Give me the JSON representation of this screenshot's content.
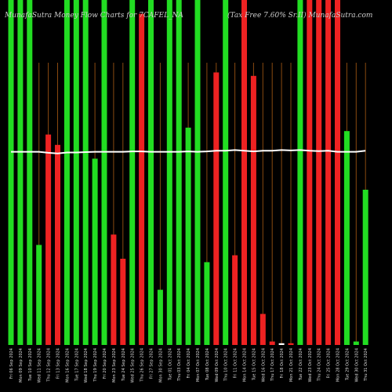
{
  "chart_data": {
    "type": "bar",
    "title": "MunafaSutra Money Flow Charts for 7CAFEL_NA",
    "subtitle": "(Tax Free 7.60% Sr.II) MunafaSutra.com",
    "categories": [
      "Fri 06 Sep 2024",
      "Mon 09 Sep 2024",
      "Tue 10 Sep 2024",
      "Wed 11 Sep 2024",
      "Thu 12 Sep 2024",
      "Fri 13 Sep 2024",
      "Mon 16 Sep 2024",
      "Tue 17 Sep 2024",
      "Wed 18 Sep 2024",
      "Thu 19 Sep 2024",
      "Fri 20 Sep 2024",
      "Mon 23 Sep 2024",
      "Tue 24 Sep 2024",
      "Wed 25 Sep 2024",
      "Thu 26 Sep 2024",
      "Fri 27 Sep 2024",
      "Mon 30 Sep 2024",
      "Tue 01 Oct 2024",
      "Thu 03 Oct 2024",
      "Fri 04 Oct 2024",
      "Mon 07 Oct 2024",
      "Tue 08 Oct 2024",
      "Wed 09 Oct 2024",
      "Thu 10 Oct 2024",
      "Fri 11 Oct 2024",
      "Mon 14 Oct 2024",
      "Tue 15 Oct 2024",
      "Wed 16 Oct 2024",
      "Thu 17 Oct 2024",
      "Fri 18 Oct 2024",
      "Mon 21 Oct 2024",
      "Tue 22 Oct 2024",
      "Wed 23 Oct 2024",
      "Thu 24 Oct 2024",
      "Fri 25 Oct 2024",
      "Mon 28 Oct 2024",
      "Tue 29 Oct 2024",
      "Wed 30 Oct 2024",
      "Thu 31 Oct 2024"
    ],
    "values": [
      100,
      100,
      100,
      29,
      61,
      58,
      100,
      100,
      100,
      54,
      100,
      32,
      25,
      100,
      96,
      100,
      16,
      100,
      100,
      63,
      100,
      24,
      79,
      100,
      26,
      100,
      78,
      9,
      1,
      0.5,
      0.5,
      100,
      100,
      100,
      100,
      100,
      62,
      1,
      45
    ],
    "colors": [
      "#22dd22",
      "#22dd22",
      "#22dd22",
      "#22dd22",
      "#ee2222",
      "#ee2222",
      "#22dd22",
      "#22dd22",
      "#22dd22",
      "#22dd22",
      "#22dd22",
      "#ee2222",
      "#ee2222",
      "#22dd22",
      "#ee2222",
      "#22dd22",
      "#22dd22",
      "#22dd22",
      "#22dd22",
      "#22dd22",
      "#22dd22",
      "#22dd22",
      "#ee2222",
      "#22dd22",
      "#ee2222",
      "#ee2222",
      "#ee2222",
      "#ee2222",
      "#ee2222",
      "#ffffff",
      "#ee2222",
      "#22dd22",
      "#ee2222",
      "#ee2222",
      "#ee2222",
      "#ee2222",
      "#22dd22",
      "#22dd22",
      "#22dd22"
    ],
    "line_values": [
      56,
      56,
      56,
      56,
      55.7,
      55.5,
      55.8,
      55.8,
      55.9,
      56,
      56,
      56,
      56,
      56.1,
      56.1,
      56,
      56,
      56,
      56,
      56.1,
      56,
      56.1,
      56.3,
      56.3,
      56.5,
      56.3,
      56.1,
      56.3,
      56.3,
      56.5,
      56.4,
      56.5,
      56.3,
      56.2,
      56.3,
      56,
      56,
      56,
      56.3
    ],
    "line_color": "#ffffff",
    "ylim": [
      0,
      100
    ],
    "grid": true,
    "grid_color": "#8a4a10"
  }
}
